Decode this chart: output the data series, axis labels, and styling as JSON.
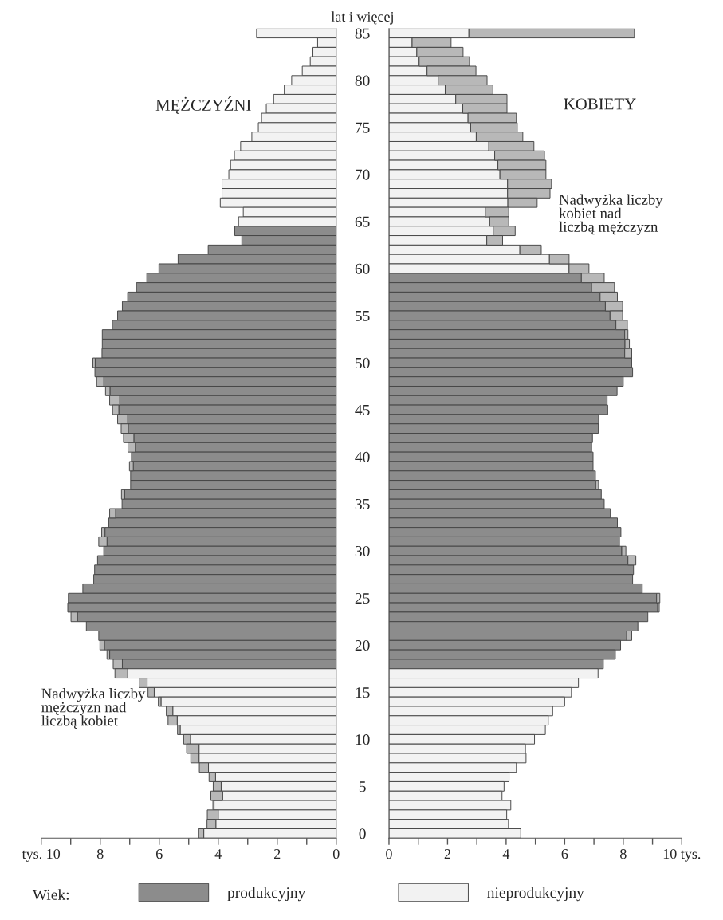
{
  "chart_data": [
    {
      "type": "bar",
      "orientation": "horizontal",
      "stacked": true,
      "title": "MĘŻCZYŹNI",
      "tick_labels": "x",
      "legend": "bottom",
      "legend_title": "Wiek:",
      "annotations": [
        "Nadwyżka liczby\nmężczyzn nad\nliczbą kobiet"
      ],
      "categories": [
        "85",
        null,
        null,
        null,
        null,
        "80",
        null,
        null,
        null,
        null,
        "75",
        null,
        null,
        null,
        null,
        "70",
        null,
        null,
        null,
        null,
        "65",
        null,
        null,
        null,
        null,
        "60",
        null,
        null,
        null,
        null,
        "55",
        null,
        null,
        null,
        null,
        "50",
        null,
        null,
        null,
        null,
        "45",
        null,
        null,
        null,
        null,
        "40",
        null,
        null,
        null,
        null,
        "35",
        null,
        null,
        null,
        null,
        "30",
        null,
        null,
        null,
        null,
        "25",
        null,
        null,
        null,
        null,
        "20",
        null,
        null,
        null,
        null,
        "15",
        null,
        null,
        null,
        null,
        "10",
        null,
        null,
        null,
        null,
        "5",
        null,
        null,
        null,
        null,
        "0"
      ],
      "xlim": [
        10,
        0
      ],
      "xticks": [
        0,
        {
          "value": 1,
          "label": null
        },
        2,
        {
          "value": 3,
          "label": null
        },
        4,
        {
          "value": 5,
          "label": null
        },
        6,
        {
          "value": 7,
          "label": null
        },
        8,
        {
          "value": 9,
          "label": null
        },
        {
          "value": 10,
          "label": "tys. 10"
        }
      ],
      "series": [
        {
          "name": "produkcyjny",
          "color": "#8c8c8c",
          "values": [
            null,
            null,
            null,
            null,
            null,
            null,
            null,
            null,
            null,
            null,
            null,
            null,
            null,
            null,
            null,
            null,
            null,
            null,
            null,
            null,
            null,
            3.44,
            3.2,
            4.34,
            5.36,
            6.01,
            6.42,
            6.77,
            7.07,
            7.25,
            7.41,
            7.59,
            7.93,
            7.93,
            7.94,
            8.17,
            8.18,
            7.88,
            7.67,
            7.34,
            7.37,
            7.07,
            7.05,
            6.86,
            6.81,
            6.94,
            6.88,
            6.97,
            6.97,
            7.17,
            7.26,
            7.48,
            7.71,
            7.84,
            7.77,
            7.88,
            8.09,
            8.19,
            8.22,
            8.59,
            9.08,
            9.1,
            8.77,
            8.47,
            8.05,
            7.86,
            7.68,
            7.25,
            null,
            null,
            null,
            null,
            null,
            null,
            null,
            null,
            null,
            null,
            null,
            null,
            null,
            null,
            null,
            null,
            null,
            null
          ]
        },
        {
          "name": "nieprodukcyjny",
          "color": "#f2f2f2",
          "values": [
            2.7,
            0.63,
            0.79,
            0.88,
            1.15,
            1.51,
            1.76,
            2.12,
            2.37,
            2.53,
            2.64,
            2.86,
            3.24,
            3.45,
            3.58,
            3.64,
            3.87,
            3.87,
            3.93,
            3.15,
            3.31,
            null,
            null,
            null,
            null,
            null,
            null,
            null,
            null,
            null,
            null,
            null,
            null,
            null,
            null,
            null,
            null,
            null,
            null,
            null,
            null,
            null,
            null,
            null,
            null,
            null,
            null,
            null,
            null,
            null,
            null,
            null,
            null,
            null,
            null,
            null,
            null,
            null,
            null,
            null,
            null,
            null,
            null,
            null,
            null,
            null,
            null,
            null,
            7.07,
            6.41,
            6.17,
            5.94,
            5.54,
            5.39,
            5.29,
            4.94,
            4.65,
            4.65,
            4.33,
            4.09,
            3.9,
            3.85,
            4.14,
            4.0,
            4.08,
            4.49
          ]
        },
        {
          "color": "#b8b8b8",
          "values": [
            null,
            null,
            null,
            null,
            null,
            null,
            null,
            null,
            null,
            null,
            null,
            null,
            null,
            null,
            null,
            null,
            null,
            null,
            null,
            null,
            null,
            null,
            null,
            null,
            null,
            null,
            null,
            null,
            null,
            null,
            null,
            null,
            null,
            null,
            null,
            0.08,
            null,
            0.24,
            0.15,
            0.34,
            0.21,
            0.34,
            0.24,
            0.35,
            0.25,
            null,
            0.13,
            null,
            null,
            0.11,
            null,
            0.2,
            null,
            0.11,
            0.28,
            null,
            null,
            null,
            null,
            null,
            null,
            null,
            0.22,
            null,
            null,
            0.15,
            0.09,
            0.31,
            0.43,
            0.27,
            0.21,
            0.09,
            0.22,
            0.31,
            0.09,
            0.23,
            0.42,
            0.28,
            0.31,
            0.22,
            0.27,
            0.4,
            0.04,
            0.37,
            0.3,
            0.17
          ]
        }
      ]
    },
    {
      "type": "bar",
      "orientation": "horizontal",
      "stacked": true,
      "title": "KOBIETY",
      "ylabel": "lat i więcej",
      "annotations": [
        "Nadwyżka liczby\nkobiet nad\nliczbą mężczyzn"
      ],
      "categories": [
        "85",
        null,
        null,
        null,
        null,
        "80",
        null,
        null,
        null,
        null,
        "75",
        null,
        null,
        null,
        null,
        "70",
        null,
        null,
        null,
        null,
        "65",
        null,
        null,
        null,
        null,
        "60",
        null,
        null,
        null,
        null,
        "55",
        null,
        null,
        null,
        null,
        "50",
        null,
        null,
        null,
        null,
        "45",
        null,
        null,
        null,
        null,
        "40",
        null,
        null,
        null,
        null,
        "35",
        null,
        null,
        null,
        null,
        "30",
        null,
        null,
        null,
        null,
        "25",
        null,
        null,
        null,
        null,
        "20",
        null,
        null,
        null,
        null,
        "15",
        null,
        null,
        null,
        null,
        "10",
        null,
        null,
        null,
        null,
        "5",
        null,
        null,
        null,
        null,
        "0"
      ],
      "xlim": [
        0,
        10
      ],
      "xticks": [
        0,
        {
          "value": 1,
          "label": null
        },
        2,
        {
          "value": 3,
          "label": null
        },
        4,
        {
          "value": 5,
          "label": null
        },
        6,
        {
          "value": 7,
          "label": null
        },
        8,
        {
          "value": 9,
          "label": null
        },
        {
          "value": 10,
          "label": "10 tys."
        }
      ],
      "series": [
        {
          "name": "produkcyjny",
          "color": "#8c8c8c",
          "values": [
            null,
            null,
            null,
            null,
            null,
            null,
            null,
            null,
            null,
            null,
            null,
            null,
            null,
            null,
            null,
            null,
            null,
            null,
            null,
            null,
            null,
            null,
            null,
            null,
            null,
            null,
            6.57,
            6.92,
            7.21,
            7.39,
            7.55,
            7.75,
            8.05,
            8.06,
            8.05,
            8.29,
            8.32,
            8.0,
            7.79,
            7.45,
            7.47,
            7.16,
            7.15,
            6.95,
            6.92,
            6.97,
            6.97,
            7.05,
            7.06,
            7.25,
            7.35,
            7.56,
            7.8,
            7.92,
            7.87,
            7.95,
            8.16,
            8.35,
            8.32,
            8.65,
            9.14,
            9.18,
            8.84,
            8.5,
            8.12,
            7.91,
            7.73,
            7.32,
            null,
            null,
            null,
            null,
            null,
            null,
            null,
            null,
            null,
            null,
            null,
            null,
            null,
            null,
            null,
            null,
            null,
            null
          ]
        },
        {
          "name": "nieprodukcyjny",
          "color": "#f2f2f2",
          "values": [
            2.73,
            0.79,
            0.95,
            1.03,
            1.3,
            1.68,
            1.92,
            2.28,
            2.52,
            2.7,
            2.79,
            2.98,
            3.41,
            3.61,
            3.72,
            3.79,
            4.05,
            4.05,
            4.06,
            3.29,
            3.44,
            3.56,
            3.34,
            4.47,
            5.48,
            6.15,
            null,
            null,
            null,
            null,
            null,
            null,
            null,
            null,
            null,
            null,
            null,
            null,
            null,
            null,
            null,
            null,
            null,
            null,
            null,
            null,
            null,
            null,
            null,
            null,
            null,
            null,
            null,
            null,
            null,
            null,
            null,
            null,
            null,
            null,
            null,
            null,
            null,
            null,
            null,
            null,
            null,
            null,
            7.14,
            6.47,
            6.23,
            6.0,
            5.59,
            5.44,
            5.34,
            4.97,
            4.66,
            4.68,
            4.35,
            4.1,
            3.93,
            3.86,
            4.16,
            4.02,
            4.08,
            4.5
          ]
        },
        {
          "color": "#b8b8b8",
          "values": [
            5.65,
            1.33,
            1.58,
            1.72,
            1.67,
            1.67,
            1.63,
            1.75,
            1.51,
            1.65,
            1.59,
            1.59,
            1.54,
            1.7,
            1.64,
            1.57,
            1.5,
            1.45,
            1.0,
            0.8,
            0.65,
            0.75,
            0.54,
            0.73,
            0.67,
            0.68,
            0.78,
            0.78,
            0.59,
            0.59,
            0.43,
            0.39,
            0.11,
            0.15,
            0.24,
            null,
            null,
            null,
            null,
            null,
            null,
            null,
            null,
            null,
            null,
            null,
            null,
            null,
            0.1,
            null,
            null,
            null,
            null,
            null,
            null,
            0.14,
            0.27,
            null,
            null,
            null,
            0.11,
            0.05,
            null,
            null,
            0.17,
            null,
            null,
            null,
            null,
            null,
            null,
            null,
            null,
            null,
            null,
            null,
            null,
            null,
            null,
            null,
            null,
            null,
            null,
            null,
            null,
            null
          ]
        }
      ]
    }
  ]
}
